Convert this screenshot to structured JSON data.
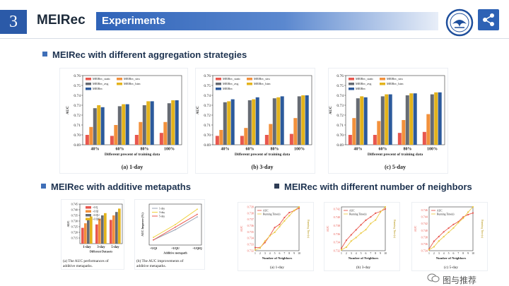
{
  "header": {
    "section_number": "3",
    "section_title": "MEIRec",
    "banner_title": "Experiments"
  },
  "sections": {
    "aggregation": "MEIRec with different aggregation strategies",
    "metapaths": "MEIRec with additive metapaths",
    "neighbors": "MEIRec with different number of neighbors"
  },
  "chart_data": [
    {
      "type": "bar",
      "caption": "(a) 1-day",
      "xlabel": "Different precent of training data",
      "ylabel": "AUC",
      "ylim": [
        0.69,
        0.76
      ],
      "yticks": [
        "0.69",
        "0.70",
        "0.71",
        "0.72",
        "0.73",
        "0.74",
        "0.75",
        "0.76"
      ],
      "categories": [
        "40%",
        "60%",
        "80%",
        "100%"
      ],
      "series": [
        {
          "name": "MEIRec_static",
          "values": [
            0.7,
            0.699,
            0.7,
            0.702
          ]
        },
        {
          "name": "MEIRec_stru",
          "values": [
            0.708,
            0.71,
            0.713,
            0.713
          ]
        },
        {
          "name": "MEIRec_avg",
          "values": [
            0.727,
            0.729,
            0.73,
            0.732
          ]
        },
        {
          "name": "MEIRec_lstm",
          "values": [
            0.73,
            0.731,
            0.734,
            0.735
          ]
        },
        {
          "name": "MEIRec",
          "values": [
            0.728,
            0.731,
            0.734,
            0.735
          ]
        }
      ]
    },
    {
      "type": "bar",
      "caption": "(b) 3-day",
      "xlabel": "Different precent of training data",
      "ylabel": "AUC",
      "ylim": [
        0.69,
        0.76
      ],
      "yticks": [
        "0.69",
        "0.70",
        "0.71",
        "0.72",
        "0.73",
        "0.74",
        "0.75",
        "0.76"
      ],
      "categories": [
        "40%",
        "60%",
        "80%",
        "100%"
      ],
      "series": [
        {
          "name": "MEIRec_static",
          "values": [
            0.699,
            0.699,
            0.7,
            0.701
          ]
        },
        {
          "name": "MEIRec_stru",
          "values": [
            0.705,
            0.707,
            0.711,
            0.717
          ]
        },
        {
          "name": "MEIRec_avg",
          "values": [
            0.733,
            0.735,
            0.737,
            0.739
          ]
        },
        {
          "name": "MEIRec_lstm",
          "values": [
            0.734,
            0.736,
            0.738,
            0.74
          ]
        },
        {
          "name": "MEIRec",
          "values": [
            0.736,
            0.738,
            0.739,
            0.74
          ]
        }
      ]
    },
    {
      "type": "bar",
      "caption": "(c) 5-day",
      "xlabel": "Different precent of training data",
      "ylabel": "AUC",
      "ylim": [
        0.69,
        0.76
      ],
      "yticks": [
        "0.69",
        "0.70",
        "0.71",
        "0.72",
        "0.73",
        "0.74",
        "0.75",
        "0.76"
      ],
      "categories": [
        "40%",
        "60%",
        "80%",
        "100%"
      ],
      "series": [
        {
          "name": "MEIRec_static",
          "values": [
            0.7,
            0.7,
            0.702,
            0.703
          ]
        },
        {
          "name": "MEIRec_stru",
          "values": [
            0.717,
            0.714,
            0.715,
            0.721
          ]
        },
        {
          "name": "MEIRec_avg",
          "values": [
            0.737,
            0.739,
            0.74,
            0.741
          ]
        },
        {
          "name": "MEIRec_lstm",
          "values": [
            0.739,
            0.741,
            0.742,
            0.743
          ]
        },
        {
          "name": "MEIRec",
          "values": [
            0.738,
            0.741,
            0.742,
            0.743
          ]
        }
      ]
    },
    {
      "type": "bar",
      "caption": "(a) The AUC performances of additive metapaths.",
      "caption_lines": [
        "(a) The AUC performances of",
        "additive metapaths."
      ],
      "xlabel": "Different Datasets",
      "ylabel": "AUC",
      "ylim": [
        0.71,
        0.745
      ],
      "yticks": [
        "0.745",
        "0.740",
        "0.735",
        "0.730",
        "0.725",
        "0.720",
        "0.715"
      ],
      "categories": [
        "1-day",
        "3-day",
        "5-day"
      ],
      "series": [
        {
          "name": "+UQ",
          "values": [
            0.724,
            0.727,
            0.731
          ]
        },
        {
          "name": "+UQI",
          "values": [
            0.728,
            0.732,
            0.735
          ]
        },
        {
          "name": "+UQU",
          "values": [
            0.732,
            0.735,
            0.738
          ]
        },
        {
          "name": "+UQIQ",
          "values": [
            0.734,
            0.737,
            0.741
          ]
        }
      ]
    },
    {
      "type": "line",
      "caption": "(b) The AUC improvements of additive metapaths.",
      "caption_lines": [
        "(b) The AUC improvements of",
        "additive metapaths."
      ],
      "xlabel": "Additive metapath",
      "ylabel": "AUC Improve (%)",
      "categories": [
        "+UQI",
        "+UQU",
        "+UQIQ"
      ],
      "series": [
        {
          "name": "1-day",
          "values": [
            1.0,
            1.4,
            1.9
          ]
        },
        {
          "name": "3-day",
          "values": [
            1.1,
            1.6,
            2.2
          ]
        },
        {
          "name": "5-day",
          "values": [
            1.0,
            1.5,
            2.0
          ]
        }
      ]
    },
    {
      "type": "line",
      "caption": "(a) 1-day",
      "xlabel": "Number of Neighbors",
      "ylabel": "AUC",
      "y2label": "Running Time(s)",
      "x": [
        1,
        2,
        3,
        4,
        5,
        6,
        7,
        8,
        9,
        10
      ],
      "ylim": [
        0.732,
        0.739
      ],
      "yticks": [
        "0.739",
        "0.738",
        "0.737",
        "0.736",
        "0.735",
        "0.734",
        "0.733",
        "0.732"
      ],
      "series": [
        {
          "name": "AUC",
          "values": [
            0.7325,
            0.7325,
            0.7333,
            0.7344,
            0.7357,
            0.7362,
            0.7373,
            0.7381,
            0.7384,
            0.7388
          ]
        },
        {
          "name": "Running Time(s)",
          "values": [
            0.02,
            0.06,
            0.22,
            0.34,
            0.42,
            0.55,
            0.68,
            0.8,
            0.92,
            1.0
          ]
        }
      ]
    },
    {
      "type": "line",
      "caption": "(b) 3-day",
      "xlabel": "Number of Neighbors",
      "ylabel": "AUC",
      "y2label": "Running Time(s)",
      "x": [
        1,
        2,
        3,
        4,
        5,
        6,
        7,
        8,
        9,
        10
      ],
      "ylim": [
        0.732,
        0.7425
      ],
      "yticks": [
        "0.742",
        "0.740",
        "0.738",
        "0.736",
        "0.734",
        "0.732"
      ],
      "series": [
        {
          "name": "AUC",
          "values": [
            0.7326,
            0.7345,
            0.7358,
            0.737,
            0.7382,
            0.7393,
            0.7401,
            0.741,
            0.7414,
            0.742
          ]
        },
        {
          "name": "Running Time(s)",
          "values": [
            0.02,
            0.08,
            0.22,
            0.3,
            0.4,
            0.48,
            0.62,
            0.7,
            0.88,
            1.0
          ]
        }
      ]
    },
    {
      "type": "line",
      "caption": "(c) 5-day",
      "xlabel": "Number of Neighbors",
      "ylabel": "AUC",
      "y2label": "Running Time(s)",
      "x": [
        1,
        2,
        3,
        4,
        5,
        6,
        7,
        8,
        9,
        10
      ],
      "ylim": [
        0.734,
        0.747
      ],
      "yticks": [
        "0.746",
        "0.744",
        "0.742",
        "0.740",
        "0.738",
        "0.736",
        "0.734"
      ],
      "series": [
        {
          "name": "AUC",
          "values": [
            0.7345,
            0.7368,
            0.7382,
            0.7396,
            0.7407,
            0.7418,
            0.7426,
            0.744,
            0.7447,
            0.7452
          ]
        },
        {
          "name": "Running Time(s)",
          "values": [
            0.02,
            0.09,
            0.22,
            0.32,
            0.42,
            0.52,
            0.64,
            0.74,
            0.88,
            1.0
          ]
        }
      ]
    }
  ],
  "colors": {
    "accent": "#2b5aa8",
    "series5": [
      "#e8574e",
      "#f2913c",
      "#666b73",
      "#e3b31c",
      "#2c5a9c"
    ],
    "series4": [
      "#e8574e",
      "#f2913c",
      "#666b73",
      "#e3b31c"
    ],
    "line3": [
      "#9aa3b5",
      "#f0d13a",
      "#e8574e"
    ],
    "auc_line": "#e8574e",
    "time_line": "#eccc4a"
  },
  "watermark": "图与推荐"
}
